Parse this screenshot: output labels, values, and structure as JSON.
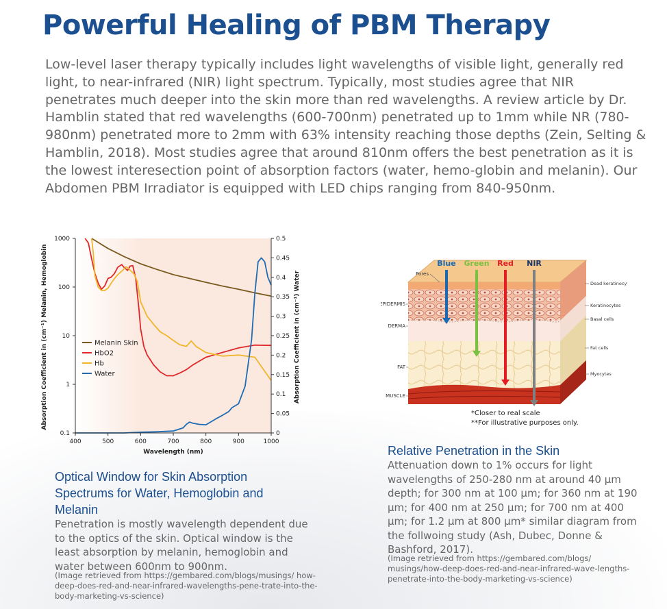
{
  "title": "Powerful Healing of PBM Therapy",
  "intro": "Low-level laser therapy typically includes light wavelengths of visible light, generally red light, to near-infrared (NIR) light spectrum. Typically, most studies agree that NIR penetrates much deeper into the skin more than red wavelengths. A review article by Dr. Hamblin stated that red wavelengths (600-700nm) penetrated up to 1mm while NR (780-980nm) penetrated more to 2mm with 63% intensity reaching those depths (Zein, Selting & Hamblin, 2018). Most studies agree that around 810nm offers the best penetration as it is the lowest interesection point of absorption factors (water, hemo-globin and melanin). Our Abdomen PBM Irradiator is equipped with LED chips ranging from 840-950nm.",
  "left_caption": {
    "title": "Optical Window for Skin Absorption Spectrums for Water, Hemoglobin and Melanin",
    "body": "Penetration is mostly wavelength dependent due to the optics of the skin. Optical window is the least absorption by melanin, hemoglobin and water between 600nm to 900nm.",
    "source": "(Image retrieved from https://gembared.com/blogs/musings/ how-deep-does-red-and-near-infrared-wavelengths-pene-trate-into-the-body-marketing-vs-science)"
  },
  "right_caption": {
    "title": "Relative Penetration in the Skin",
    "body": "Attenuation down to 1% occurs for light wavelengths of 250-280 nm at around 40 μm depth; for 300 nm at 100 μm; for 360 nm at 190 μm; for 400 nm at 250 μm; for 700 nm at 400 μm; for 1.2 μm at 800 μm* similar diagram from the follwoing study (Ash, Dubec, Donne & Bashford, 2017).",
    "source": "(Image retrieved from https://gembared.com/blogs/ musings/how-deep-does-red-and-near-infrared-wave-lengths-penetrate-into-the-body-marketing-vs-science)"
  },
  "chart_data": {
    "type": "line",
    "xlabel": "Wavelength (nm)",
    "ylabel_left": "Absorption Coefficient in (cm⁻¹) Melanin, Hemoglobin",
    "ylabel_right": "Absorption Coefficient in (cm⁻¹) Water",
    "xlim": [
      400,
      1000
    ],
    "xticks": [
      "400",
      "500",
      "600",
      "700",
      "800",
      "900",
      "1000"
    ],
    "ylim_left": [
      0.1,
      1000
    ],
    "yscale_left": "log",
    "yticks_left": [
      "1000",
      "100",
      "10",
      "1",
      "0.1"
    ],
    "ylim_right": [
      0,
      0.5
    ],
    "yticks_right": [
      "0.5",
      "0.45",
      "0.4",
      "0.35",
      "0.3",
      "0.25",
      "0.2",
      "0.15",
      "0.1",
      "0.05",
      "0"
    ],
    "legend_placement": "left-center",
    "series": [
      {
        "name": "Melanin Skin",
        "color": "#7a5a1e",
        "axis": "left",
        "x": [
          450,
          500,
          550,
          600,
          650,
          700,
          750,
          800,
          850,
          900,
          950,
          1000
        ],
        "y": [
          1000,
          620,
          420,
          300,
          230,
          180,
          150,
          125,
          105,
          90,
          76,
          65
        ]
      },
      {
        "name": "HbO2",
        "color": "#e0282a",
        "axis": "left",
        "x": [
          430,
          440,
          450,
          460,
          470,
          480,
          490,
          500,
          510,
          520,
          530,
          542,
          550,
          560,
          568,
          576,
          585,
          595,
          600,
          610,
          620,
          640,
          660,
          680,
          700,
          720,
          740,
          760,
          780,
          800,
          850,
          900,
          950,
          1000
        ],
        "y": [
          1000,
          800,
          380,
          190,
          120,
          90,
          105,
          150,
          160,
          190,
          255,
          290,
          250,
          220,
          270,
          275,
          150,
          35,
          14,
          6,
          4,
          2.5,
          1.8,
          1.5,
          1.5,
          1.7,
          2.0,
          2.5,
          3.0,
          3.6,
          4.5,
          5.6,
          6.4,
          6.3
        ]
      },
      {
        "name": "Hb",
        "color": "#f0b62c",
        "axis": "left",
        "x": [
          450,
          455,
          460,
          470,
          480,
          490,
          500,
          510,
          520,
          530,
          545,
          555,
          560,
          570,
          580,
          590,
          600,
          620,
          640,
          660,
          680,
          700,
          720,
          740,
          755,
          770,
          800,
          850,
          900,
          950,
          1000
        ],
        "y": [
          1000,
          500,
          170,
          100,
          85,
          85,
          95,
          120,
          150,
          180,
          220,
          260,
          250,
          215,
          185,
          130,
          50,
          25,
          17,
          12,
          10,
          8,
          6.5,
          6.0,
          7.8,
          6.0,
          4.5,
          3.8,
          4.0,
          3.6,
          1.2
        ]
      },
      {
        "name": "Water",
        "color": "#1e6cb5",
        "axis": "right",
        "x": [
          400,
          450,
          500,
          550,
          600,
          650,
          700,
          730,
          740,
          750,
          760,
          780,
          800,
          830,
          850,
          870,
          880,
          900,
          920,
          940,
          950,
          960,
          970,
          980,
          990,
          1000
        ],
        "y": [
          0.0,
          0.0,
          0.0,
          0.0,
          0.002,
          0.003,
          0.005,
          0.013,
          0.022,
          0.028,
          0.025,
          0.022,
          0.021,
          0.036,
          0.045,
          0.055,
          0.065,
          0.075,
          0.12,
          0.24,
          0.36,
          0.44,
          0.45,
          0.44,
          0.4,
          0.38
        ]
      }
    ]
  },
  "skin_diagram": {
    "beams": [
      {
        "label": "Blue",
        "color": "#1a6ab3"
      },
      {
        "label": "Green",
        "color": "#7ac143"
      },
      {
        "label": "Red",
        "color": "#e41d24"
      },
      {
        "label": "NIR",
        "color": "#808080"
      }
    ],
    "left_labels": [
      "Pores",
      "EPIDERMIS",
      "DERMA",
      "FAT",
      "MUSCLE"
    ],
    "right_labels": [
      "Dead keratinocytes",
      "Keratinocytes",
      "Basal cells",
      "Fat cells",
      "Myocytes"
    ],
    "notes": [
      "*Closer to real scale",
      "**For illustrative purposes only."
    ]
  }
}
